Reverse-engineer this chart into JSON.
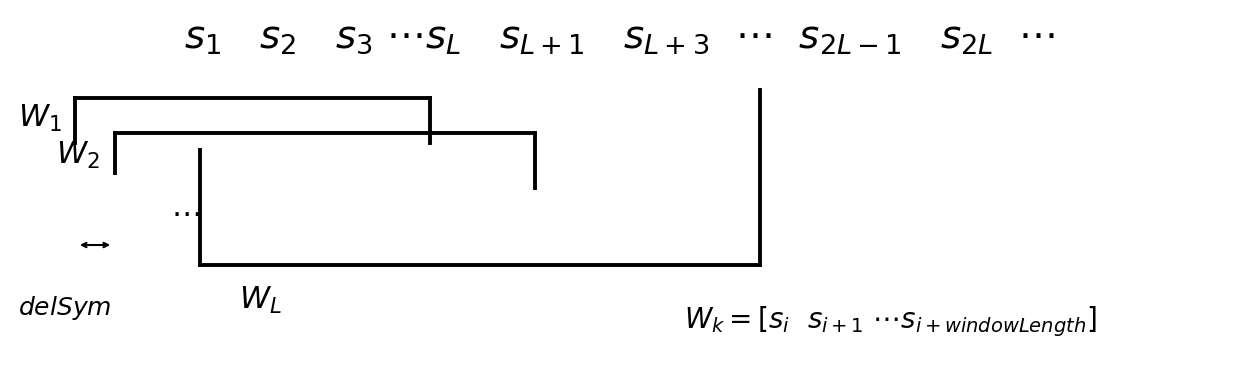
{
  "bg_color": "#ffffff",
  "fig_width": 12.4,
  "fig_height": 3.81,
  "dpi": 100,
  "lw": 2.8,
  "seq_fontsize": 28,
  "label_fontsize": 22,
  "eq_fontsize": 20,
  "delsym_fontsize": 18,
  "dots_fontsize": 22
}
